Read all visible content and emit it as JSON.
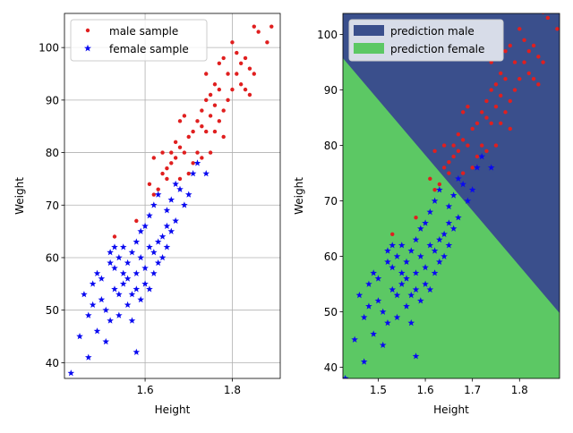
{
  "chart_data": [
    {
      "type": "scatter",
      "xlabel": "Height",
      "ylabel": "Weight",
      "xlim": [
        1.415,
        1.91
      ],
      "ylim": [
        37.0,
        106.5
      ],
      "xticks": [
        "1.6",
        "1.8"
      ],
      "yticks": [
        "40",
        "50",
        "60",
        "70",
        "80",
        "90",
        "100"
      ],
      "grid": true,
      "legend_position": "top-left",
      "series": [
        {
          "name": "male sample",
          "marker": "dot",
          "color": "#e01f1f",
          "x": [
            1.58,
            1.61,
            1.62,
            1.63,
            1.64,
            1.64,
            1.65,
            1.65,
            1.66,
            1.66,
            1.67,
            1.67,
            1.68,
            1.68,
            1.68,
            1.69,
            1.69,
            1.7,
            1.7,
            1.71,
            1.71,
            1.72,
            1.72,
            1.73,
            1.73,
            1.73,
            1.74,
            1.74,
            1.74,
            1.75,
            1.75,
            1.75,
            1.76,
            1.76,
            1.76,
            1.77,
            1.77,
            1.77,
            1.78,
            1.78,
            1.78,
            1.79,
            1.79,
            1.8,
            1.8,
            1.81,
            1.81,
            1.82,
            1.82,
            1.83,
            1.83,
            1.84,
            1.84,
            1.85,
            1.85,
            1.86,
            1.88,
            1.89,
            1.53,
            1.62
          ],
          "y": [
            67,
            74,
            79,
            73,
            76,
            80,
            75,
            77,
            78,
            80,
            79,
            82,
            81,
            86,
            75,
            87,
            80,
            83,
            76,
            84,
            78,
            86,
            80,
            85,
            88,
            79,
            90,
            84,
            95,
            91,
            87,
            80,
            93,
            89,
            84,
            97,
            92,
            86,
            88,
            98,
            83,
            95,
            90,
            101,
            92,
            99,
            95,
            97,
            93,
            92,
            98,
            91,
            96,
            104,
            95,
            103,
            101,
            104,
            64,
            72
          ]
        },
        {
          "name": "female sample",
          "marker": "star",
          "color": "#0a0af0",
          "x": [
            1.43,
            1.45,
            1.46,
            1.47,
            1.47,
            1.48,
            1.48,
            1.49,
            1.49,
            1.5,
            1.5,
            1.51,
            1.51,
            1.52,
            1.52,
            1.52,
            1.53,
            1.53,
            1.53,
            1.54,
            1.54,
            1.54,
            1.55,
            1.55,
            1.55,
            1.56,
            1.56,
            1.56,
            1.57,
            1.57,
            1.57,
            1.58,
            1.58,
            1.58,
            1.59,
            1.59,
            1.59,
            1.6,
            1.6,
            1.6,
            1.61,
            1.61,
            1.61,
            1.62,
            1.62,
            1.62,
            1.63,
            1.63,
            1.63,
            1.64,
            1.64,
            1.65,
            1.65,
            1.65,
            1.66,
            1.66,
            1.67,
            1.67,
            1.68,
            1.69,
            1.7,
            1.71,
            1.72,
            1.74,
            1.58
          ],
          "y": [
            38,
            45,
            53,
            41,
            49,
            51,
            55,
            46,
            57,
            52,
            56,
            44,
            50,
            59,
            61,
            48,
            54,
            58,
            62,
            49,
            53,
            60,
            55,
            57,
            62,
            51,
            56,
            59,
            48,
            53,
            61,
            54,
            57,
            63,
            52,
            60,
            65,
            55,
            58,
            66,
            54,
            62,
            68,
            57,
            61,
            70,
            59,
            63,
            72,
            60,
            64,
            62,
            66,
            69,
            65,
            71,
            67,
            74,
            73,
            70,
            72,
            76,
            78,
            76,
            42
          ]
        }
      ]
    },
    {
      "type": "scatter",
      "xlabel": "Height",
      "ylabel": "Weight",
      "xlim": [
        1.425,
        1.885
      ],
      "ylim": [
        38.0,
        103.8
      ],
      "xticks": [
        "1.5",
        "1.6",
        "1.7",
        "1.8"
      ],
      "yticks": [
        "40",
        "50",
        "60",
        "70",
        "80",
        "90",
        "100"
      ],
      "grid": false,
      "legend_position": "top-left",
      "regions": [
        {
          "name": "prediction male",
          "color": "#3a4f8c"
        },
        {
          "name": "prediction female",
          "color": "#5cc864"
        }
      ],
      "series": [
        {
          "name": "male",
          "marker": "dot",
          "color": "#e01f1f",
          "same_as": "chart_data.0.series.0"
        },
        {
          "name": "female",
          "marker": "star",
          "color": "#0a0af0",
          "same_as": "chart_data.0.series.1"
        }
      ]
    }
  ]
}
